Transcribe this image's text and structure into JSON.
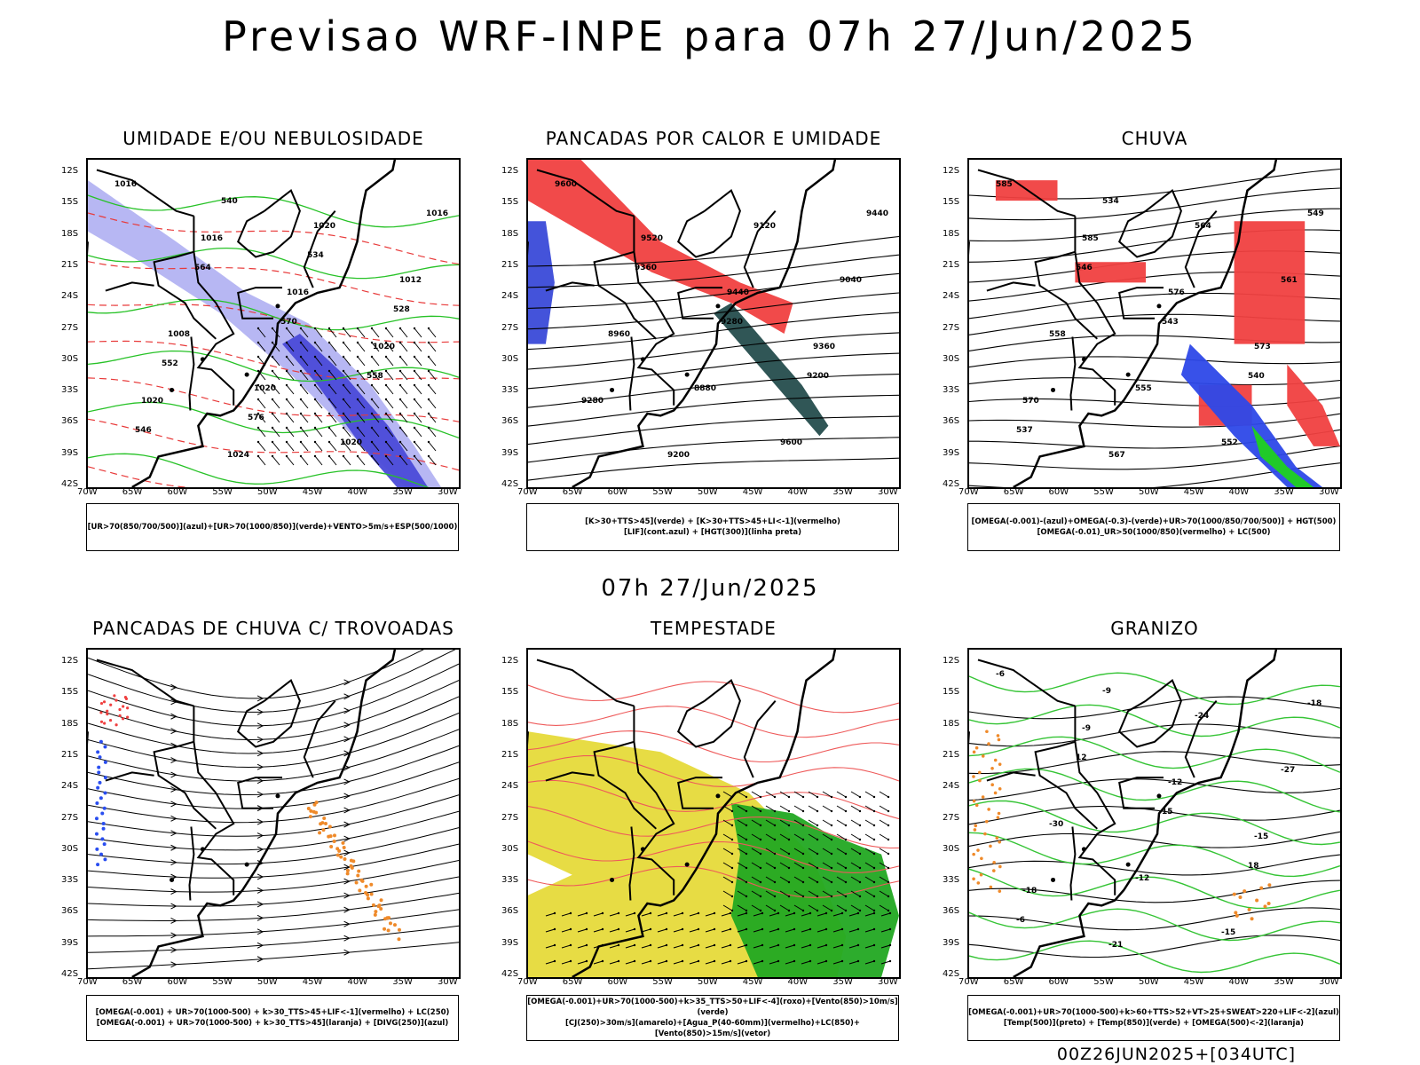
{
  "header": {
    "title": "Previsao WRF-INPE  para 07h 27/Jun/2025",
    "mid_title": "07h 27/Jun/2025",
    "footer_stamp": "00Z26JUN2025+[034UTC]"
  },
  "axes": {
    "lat_ticks": [
      "12S",
      "15S",
      "18S",
      "21S",
      "24S",
      "27S",
      "30S",
      "33S",
      "36S",
      "39S",
      "42S"
    ],
    "lon_ticks": [
      "70W",
      "65W",
      "60W",
      "55W",
      "50W",
      "45W",
      "40W",
      "35W",
      "30W"
    ]
  },
  "panels": [
    {
      "id": "umidade",
      "title": "UMIDADE E/OU NEBULOSIDADE",
      "legend": [
        "[UR>70(850/700/500)](azul)+[UR>70(1000/850)](verde)+VENTO>5m/s+ESP(500/1000)"
      ],
      "labels": [
        "1016",
        "1016",
        "1016",
        "1020",
        "1020",
        "1024",
        "1020",
        "1012",
        "1008",
        "1020",
        "1020",
        "1016",
        "564",
        "570",
        "558",
        "546",
        "540",
        "534",
        "528",
        "552",
        "576"
      ]
    },
    {
      "id": "pancadas-calor",
      "title": "PANCADAS POR CALOR E UMIDADE",
      "legend": [
        "[K>30+TTS>45](verde) + [K>30+TTS>45+LI<-1](vermelho)",
        "[LIF](cont.azul) + [HGT(300)](linha preta)"
      ],
      "labels": [
        "9600",
        "9520",
        "9440",
        "9360",
        "9280",
        "9200",
        "9120",
        "9040",
        "8960",
        "8880",
        "9600",
        "9440",
        "9360",
        "9280",
        "9200"
      ]
    },
    {
      "id": "chuva",
      "title": "CHUVA",
      "legend": [
        "[OMEGA(-0.001)-(azul)+OMEGA(-0.3)-(verde)+UR>70(1000/850/700/500)] + HGT(500)",
        "[OMEGA(-0.01)_UR>50(1000/850)(vermelho) + LC(500)"
      ],
      "labels": [
        "585",
        "585",
        "576",
        "573",
        "570",
        "567",
        "564",
        "561",
        "558",
        "555",
        "552",
        "549",
        "546",
        "543",
        "540",
        "537",
        "534"
      ]
    },
    {
      "id": "trovoadas",
      "title": "PANCADAS DE CHUVA C/ TROVOADAS",
      "legend": [
        "[OMEGA(-0.001) + UR>70(1000-500) + k>30_TTS>45+LIF<-1](vermelho) + LC(250)",
        "[OMEGA(-0.001) + UR>70(1000-500) + k>30_TTS>45](laranja) + [DIVG(250)](azul)"
      ],
      "labels": []
    },
    {
      "id": "tempestade",
      "title": "TEMPESTADE",
      "legend": [
        "[OMEGA(-0.001)+UR>70(1000-500)+k>35_TTS>50+LIF<-4](roxo)+[Vento(850)>10m/s](verde)",
        "[CJ(250)>30m/s](amarelo)+[Agua_P(40-60mm)](vermelho)+LC(850)+[Vento(850)>15m/s](vetor)"
      ],
      "labels": []
    },
    {
      "id": "granizo",
      "title": "GRANIZO",
      "legend": [
        "[OMEGA(-0.001)+UR>70(1000-500)+k>60+TTS>52+VT>25+SWEAT>220+LIF<-2](azul)",
        "[Temp(500)](preto) + [Temp(850)](verde) + [OMEGA(500)<-2](laranja)"
      ],
      "labels": [
        "-6",
        "-9",
        "-12",
        "-15",
        "-18",
        "-21",
        "-24",
        "-27",
        "-30",
        "-12",
        "-15",
        "-18",
        "12",
        "15",
        "18",
        "-6",
        "-9"
      ]
    }
  ]
}
